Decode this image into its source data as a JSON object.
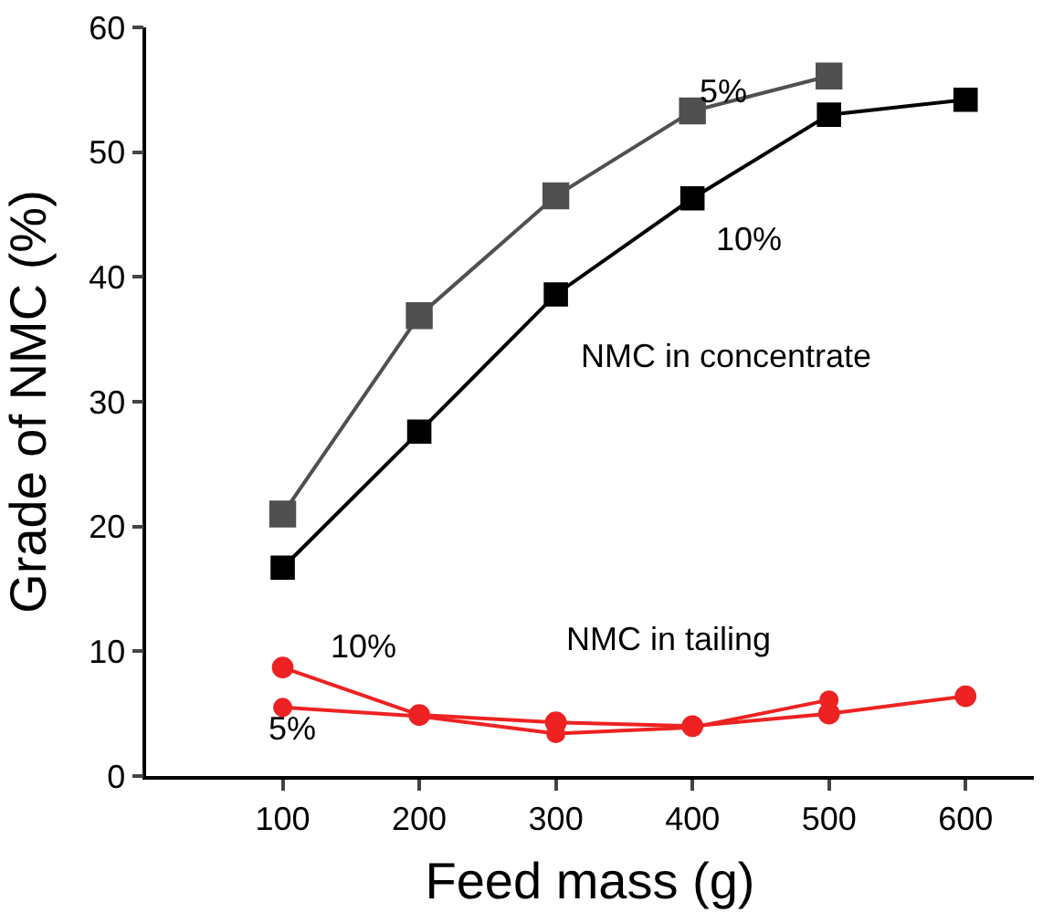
{
  "chart_data": {
    "type": "line",
    "xlabel": "Feed mass (g)",
    "ylabel": "Grade of NMC (%)",
    "xlim": [
      0,
      650
    ],
    "ylim": [
      0,
      60
    ],
    "xticks": [
      100,
      200,
      300,
      400,
      500,
      600
    ],
    "yticks": [
      0,
      10,
      20,
      30,
      40,
      50,
      60
    ],
    "series": [
      {
        "color": "#505050",
        "marker": "square",
        "x": [
          100,
          200,
          300,
          400,
          500
        ],
        "values": [
          21.0,
          36.9,
          46.5,
          53.3,
          56.1
        ]
      },
      {
        "color": "#000000",
        "marker": "square",
        "x": [
          100,
          200,
          300,
          400,
          500,
          600
        ],
        "values": [
          16.7,
          27.6,
          38.6,
          46.3,
          53.0,
          54.2
        ]
      },
      {
        "color": "#ee2222",
        "marker": "circle",
        "x": [
          100,
          200,
          300,
          400,
          500,
          600
        ],
        "values": [
          8.7,
          4.9,
          4.3,
          4.0,
          5.0,
          6.4
        ]
      },
      {
        "color": "#ee2222",
        "marker": "circle",
        "x": [
          100,
          200,
          300,
          400,
          500
        ],
        "values": [
          5.5,
          4.8,
          3.4,
          3.9,
          6.1
        ]
      }
    ],
    "annotations": [
      "5%",
      "10%",
      "NMC in concentrate",
      "NMC in tailing",
      "10%",
      "5%"
    ]
  }
}
